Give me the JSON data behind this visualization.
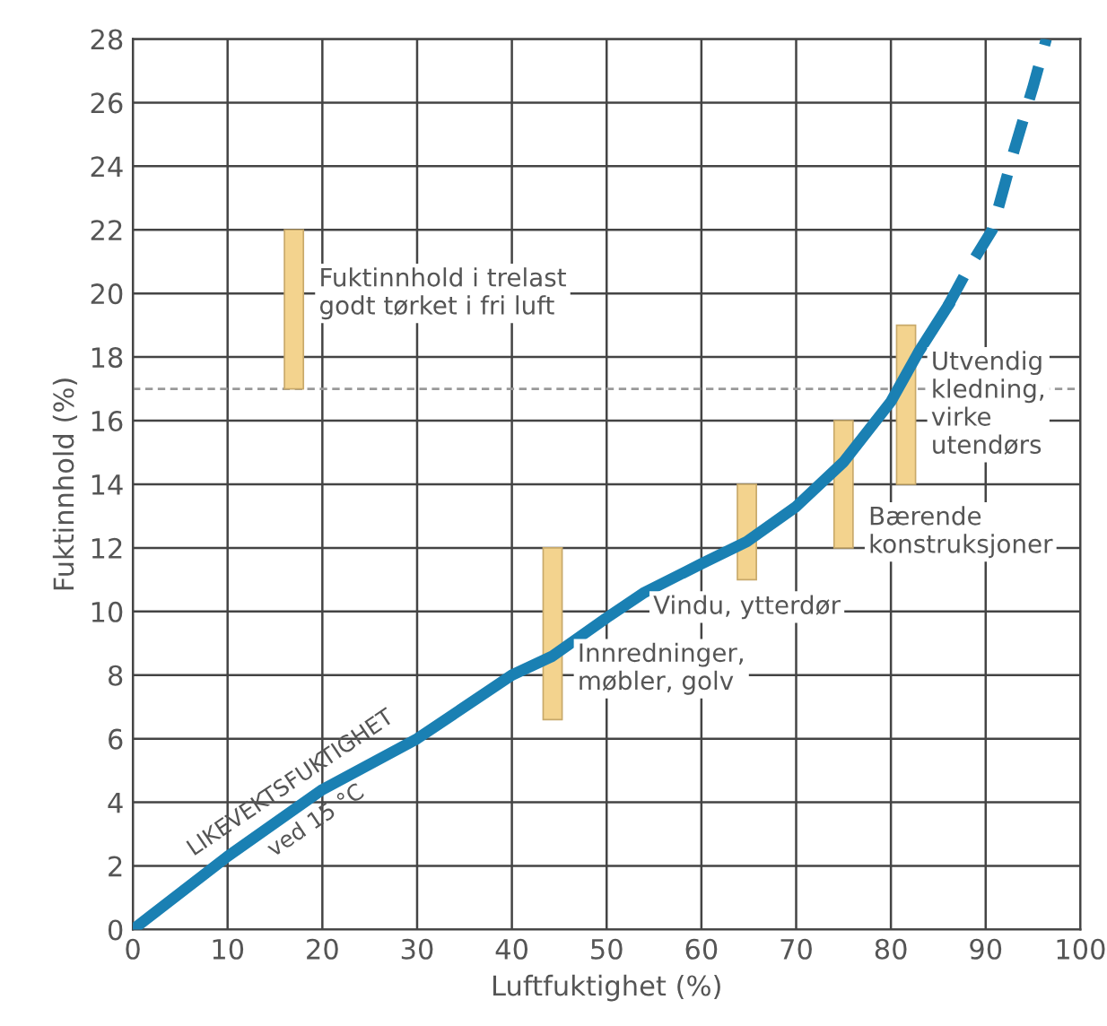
{
  "chart_data": {
    "type": "line",
    "xlabel": "Luftfuktighet (%)",
    "ylabel": "Fuktinnhold (%)",
    "xlim": [
      0,
      100
    ],
    "xticks": [
      0,
      10,
      20,
      30,
      40,
      50,
      60,
      70,
      80,
      90,
      100
    ],
    "ylim": [
      0,
      28
    ],
    "yticks": [
      0,
      2,
      4,
      6,
      8,
      10,
      12,
      14,
      16,
      18,
      20,
      22,
      24,
      26,
      28
    ],
    "grid": true,
    "series": [
      {
        "type": "bar",
        "color": "#f3d38e",
        "x": [
          17,
          44.3,
          64.8,
          75,
          81.6
        ],
        "base": [
          17,
          6.6,
          11,
          12,
          14
        ],
        "values": [
          5,
          5.4,
          3,
          4,
          5
        ]
      },
      {
        "color": "#1a80b3",
        "line_style": "solid",
        "x": [
          0,
          10,
          20,
          30,
          40,
          44.3,
          50,
          54,
          60,
          64.8,
          70,
          75,
          80,
          83,
          86
        ],
        "values": [
          0,
          2.3,
          4.4,
          6.0,
          8.0,
          8.6,
          9.8,
          10.6,
          11.5,
          12.2,
          13.3,
          14.7,
          16.6,
          18.2,
          19.6
        ]
      },
      {
        "color": "#1a80b3",
        "line_style": "dashed",
        "x": [
          86,
          88,
          90.7,
          93,
          95,
          96.4
        ],
        "values": [
          19.6,
          20.7,
          22,
          24.5,
          26.5,
          28
        ]
      }
    ],
    "ref_lines": [
      {
        "axis": "y",
        "value": 17,
        "color": "#999999",
        "line_style": "dashed"
      }
    ],
    "annotations": [
      {
        "text": "Fuktinnhold i trelast\ngodt tørket i fri luft",
        "x": 17,
        "y": 20
      },
      {
        "text": "Innredninger,\nmøbler, golv",
        "x": 44.3,
        "y": 8.2
      },
      {
        "text": "Vindu, ytterdør",
        "x": 64.8,
        "y": 11
      },
      {
        "text": "Bærende\nkonstruksjoner",
        "x": 75,
        "y": 12.5
      },
      {
        "text": "Utvendig\nkledning,\nvirke\nutendørs",
        "x": 81.6,
        "y": 16.5
      },
      {
        "text": "LIKEVEKTSFUKTIGHET\nved 15 °C",
        "x": 18,
        "y": 4.0
      }
    ]
  }
}
